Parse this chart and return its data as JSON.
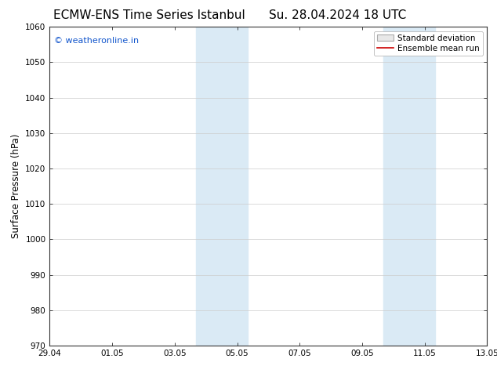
{
  "title_left": "ECMW-ENS Time Series Istanbul",
  "title_right": "Su. 28.04.2024 18 UTC",
  "ylabel": "Surface Pressure (hPa)",
  "ylim": [
    970,
    1060
  ],
  "yticks": [
    970,
    980,
    990,
    1000,
    1010,
    1020,
    1030,
    1040,
    1050,
    1060
  ],
  "xtick_labels": [
    "29.04",
    "01.05",
    "03.05",
    "05.05",
    "07.05",
    "09.05",
    "11.05",
    "13.05"
  ],
  "xtick_positions": [
    0,
    2,
    4,
    6,
    8,
    10,
    12,
    14
  ],
  "x_start": 0,
  "x_end": 14,
  "shade_bands": [
    {
      "x_start": 4.67,
      "x_end": 6.33
    },
    {
      "x_start": 10.67,
      "x_end": 12.33
    }
  ],
  "shade_color": "#daeaf5",
  "background_color": "#ffffff",
  "plot_bg_color": "#ffffff",
  "watermark_text": "© weatheronline.in",
  "watermark_color": "#1155cc",
  "legend_std_label": "Standard deviation",
  "legend_ens_label": "Ensemble mean run",
  "legend_std_facecolor": "#e8e8e8",
  "legend_std_edgecolor": "#aaaaaa",
  "legend_ens_color": "#cc0000",
  "title_fontsize": 11,
  "tick_fontsize": 7.5,
  "ylabel_fontsize": 8.5,
  "watermark_fontsize": 8,
  "legend_fontsize": 7.5
}
